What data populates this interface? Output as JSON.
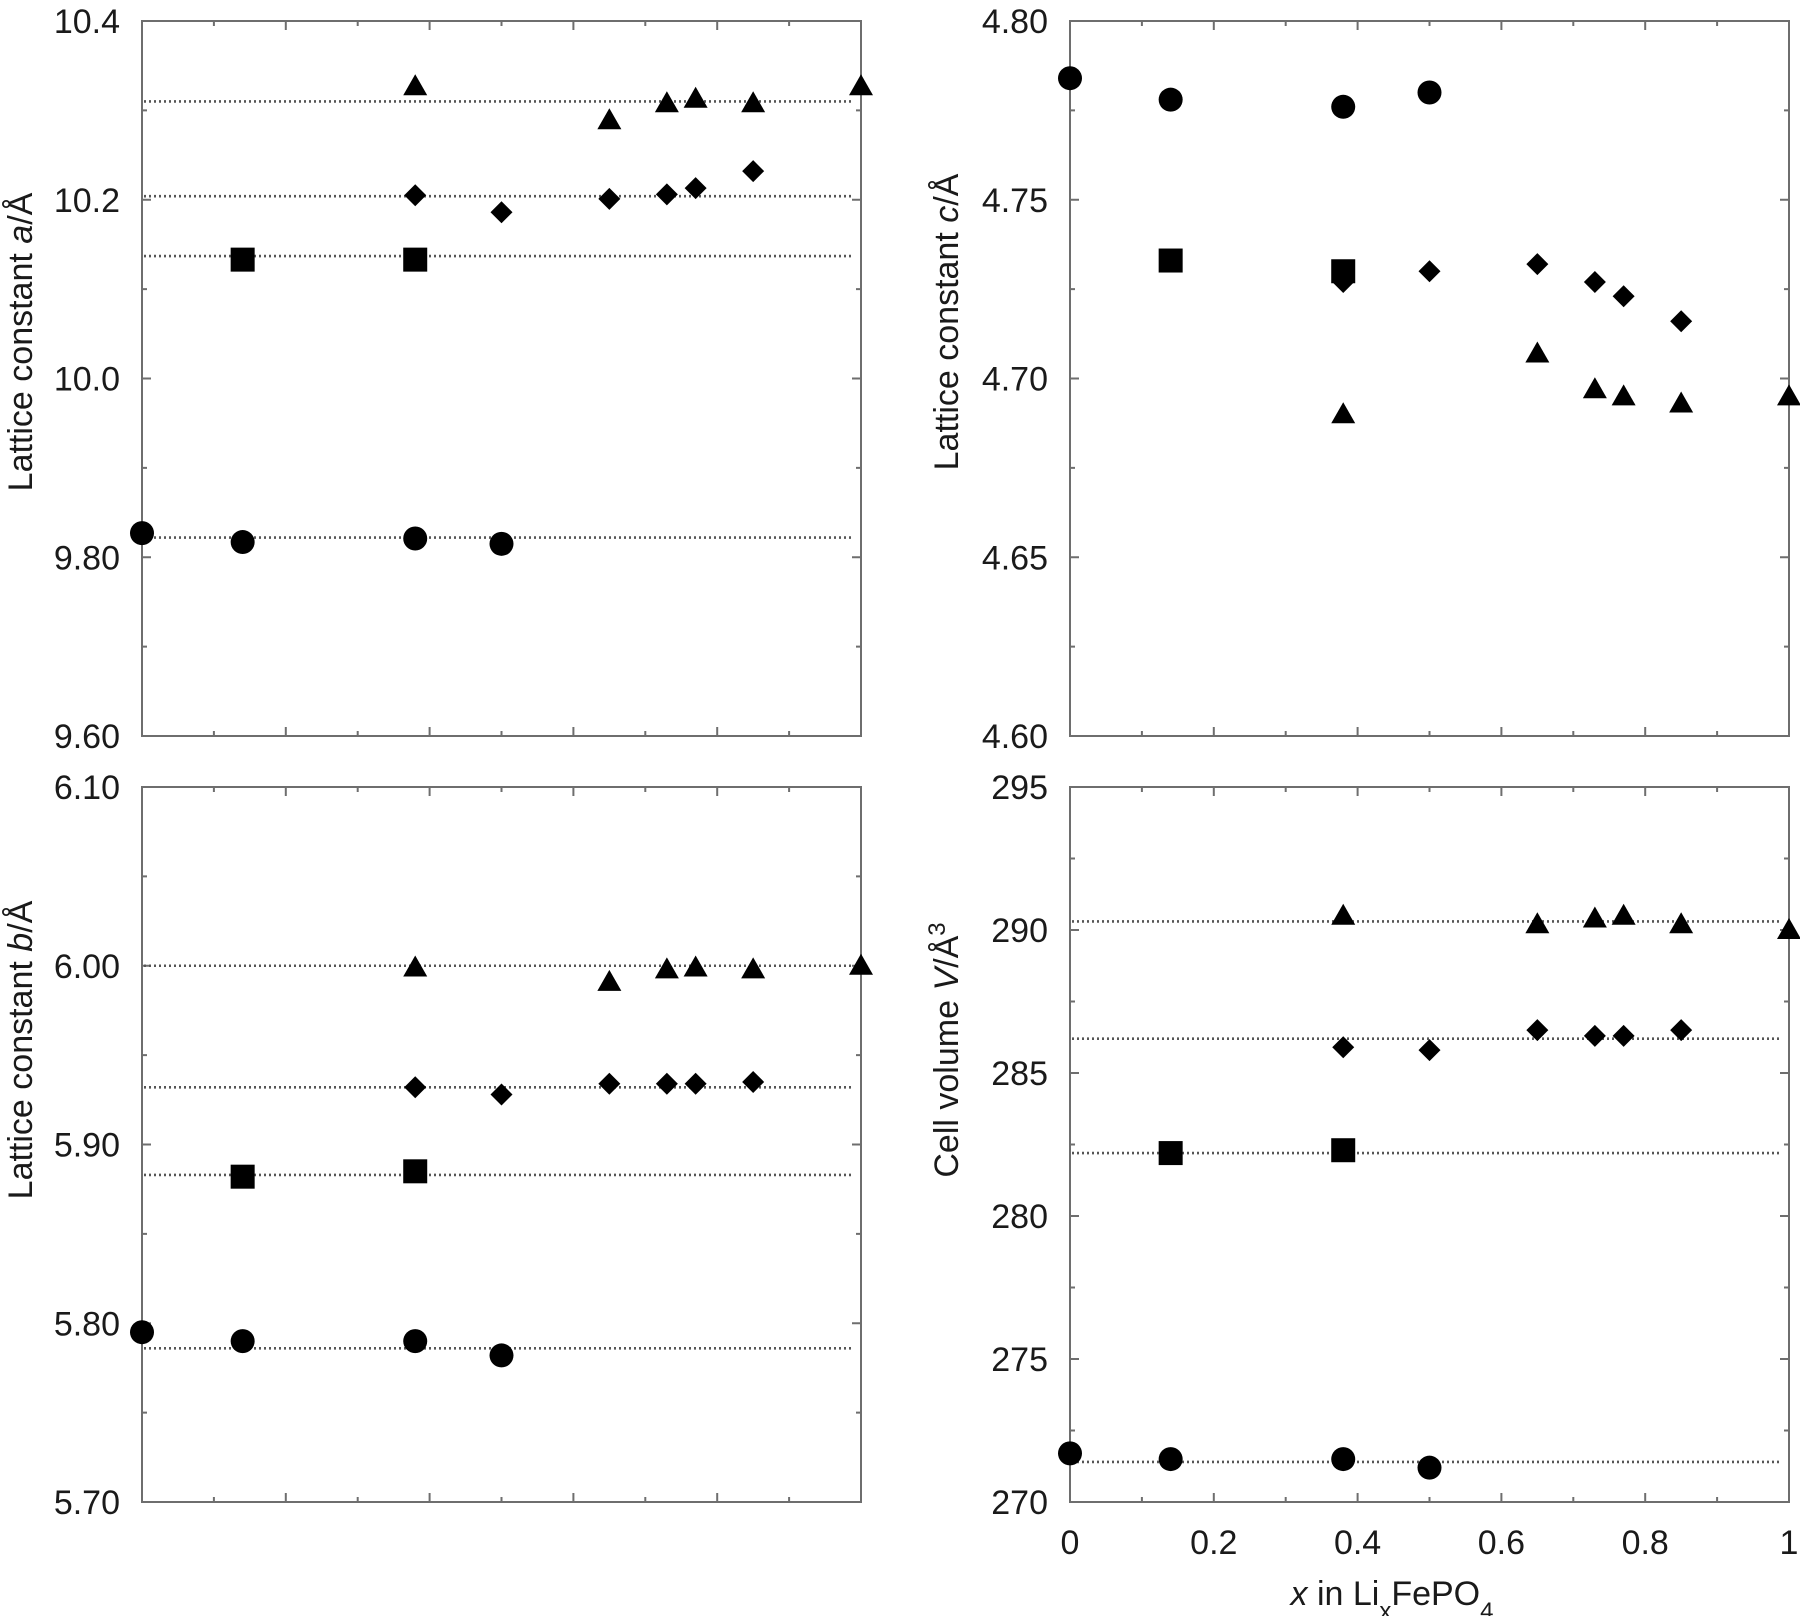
{
  "colors": {
    "marker": "#000000",
    "frame": "#6e6e6e",
    "reference_line": "#555555"
  },
  "chart_data": [
    {
      "type": "scatter",
      "panel": "a",
      "ylabel_pre": "Lattice constant ",
      "ylabel_var": "a",
      "ylabel_unit": "/Å",
      "ylim": [
        9.6,
        10.4
      ],
      "y_ticks": [
        "9.60",
        "9.80",
        "10.0",
        "10.2",
        "10.4"
      ],
      "xlim": [
        0,
        1
      ],
      "reference_lines": [
        10.31,
        10.204,
        10.137,
        9.822
      ],
      "series": [
        {
          "marker": "circle",
          "points": [
            [
              0,
              9.827
            ],
            [
              0.14,
              9.817
            ],
            [
              0.38,
              9.821
            ],
            [
              0.5,
              9.815
            ]
          ]
        },
        {
          "marker": "square",
          "points": [
            [
              0.14,
              10.133
            ],
            [
              0.38,
              10.133
            ]
          ]
        },
        {
          "marker": "diamond",
          "points": [
            [
              0.38,
              10.205
            ],
            [
              0.5,
              10.186
            ],
            [
              0.65,
              10.201
            ],
            [
              0.73,
              10.206
            ],
            [
              0.77,
              10.213
            ],
            [
              0.85,
              10.232
            ]
          ]
        },
        {
          "marker": "triangle",
          "points": [
            [
              0.38,
              10.327
            ],
            [
              0.65,
              10.289
            ],
            [
              0.73,
              10.308
            ],
            [
              0.77,
              10.313
            ],
            [
              0.85,
              10.308
            ],
            [
              1,
              10.327
            ]
          ]
        }
      ]
    },
    {
      "type": "scatter",
      "panel": "c",
      "ylabel_pre": "Lattice constant ",
      "ylabel_var": "c",
      "ylabel_unit": "/Å",
      "ylim": [
        4.6,
        4.8
      ],
      "y_ticks": [
        "4.60",
        "4.65",
        "4.70",
        "4.75",
        "4.80"
      ],
      "xlim": [
        0,
        1
      ],
      "reference_lines": [],
      "series": [
        {
          "marker": "circle",
          "points": [
            [
              0,
              4.784
            ],
            [
              0.14,
              4.778
            ],
            [
              0.38,
              4.776
            ],
            [
              0.5,
              4.78
            ]
          ]
        },
        {
          "marker": "square",
          "points": [
            [
              0.14,
              4.733
            ],
            [
              0.38,
              4.73
            ]
          ]
        },
        {
          "marker": "diamond",
          "points": [
            [
              0.38,
              4.727
            ],
            [
              0.5,
              4.73
            ],
            [
              0.65,
              4.732
            ],
            [
              0.73,
              4.727
            ],
            [
              0.77,
              4.723
            ],
            [
              0.85,
              4.716
            ]
          ]
        },
        {
          "marker": "triangle",
          "points": [
            [
              0.38,
              4.69
            ],
            [
              0.65,
              4.707
            ],
            [
              0.73,
              4.697
            ],
            [
              0.77,
              4.695
            ],
            [
              0.85,
              4.693
            ],
            [
              1,
              4.695
            ]
          ]
        }
      ]
    },
    {
      "type": "scatter",
      "panel": "b",
      "ylabel_pre": "Lattice constant ",
      "ylabel_var": "b",
      "ylabel_unit": "/Å",
      "ylim": [
        5.7,
        6.1
      ],
      "y_ticks": [
        "5.70",
        "5.80",
        "5.90",
        "6.00",
        "6.10"
      ],
      "xlim": [
        0,
        1
      ],
      "reference_lines": [
        6.0,
        5.932,
        5.883,
        5.786
      ],
      "series": [
        {
          "marker": "circle",
          "points": [
            [
              0,
              5.795
            ],
            [
              0.14,
              5.79
            ],
            [
              0.38,
              5.79
            ],
            [
              0.5,
              5.782
            ]
          ]
        },
        {
          "marker": "square",
          "points": [
            [
              0.14,
              5.882
            ],
            [
              0.38,
              5.885
            ]
          ]
        },
        {
          "marker": "diamond",
          "points": [
            [
              0.38,
              5.932
            ],
            [
              0.5,
              5.928
            ],
            [
              0.65,
              5.934
            ],
            [
              0.73,
              5.934
            ],
            [
              0.77,
              5.934
            ],
            [
              0.85,
              5.935
            ]
          ]
        },
        {
          "marker": "triangle",
          "points": [
            [
              0.38,
              5.999
            ],
            [
              0.65,
              5.991
            ],
            [
              0.73,
              5.998
            ],
            [
              0.77,
              5.999
            ],
            [
              0.85,
              5.998
            ],
            [
              1,
              6.0
            ]
          ]
        }
      ]
    },
    {
      "type": "scatter",
      "panel": "V",
      "ylabel_pre": "Cell volume ",
      "ylabel_var": "V",
      "ylabel_unit": "/Å",
      "ylabel_sup": "3",
      "ylim": [
        270,
        295
      ],
      "y_ticks": [
        "270",
        "275",
        "280",
        "285",
        "290",
        "295"
      ],
      "xlim": [
        0,
        1
      ],
      "x_ticks": [
        "0",
        "0.2",
        "0.4",
        "0.6",
        "0.8",
        "1"
      ],
      "xlabel_var": "x",
      "xlabel_pre": " in Li",
      "xlabel_sub1": "x",
      "xlabel_mid": "FePO",
      "xlabel_sub2": "4",
      "reference_lines": [
        290.3,
        286.2,
        282.2,
        271.4
      ],
      "series": [
        {
          "marker": "circle",
          "points": [
            [
              0,
              271.7
            ],
            [
              0.14,
              271.5
            ],
            [
              0.38,
              271.5
            ],
            [
              0.5,
              271.2
            ]
          ]
        },
        {
          "marker": "square",
          "points": [
            [
              0.14,
              282.2
            ],
            [
              0.38,
              282.3
            ]
          ]
        },
        {
          "marker": "diamond",
          "points": [
            [
              0.38,
              285.9
            ],
            [
              0.5,
              285.8
            ],
            [
              0.65,
              286.5
            ],
            [
              0.73,
              286.3
            ],
            [
              0.77,
              286.3
            ],
            [
              0.85,
              286.5
            ]
          ]
        },
        {
          "marker": "triangle",
          "points": [
            [
              0.38,
              290.5
            ],
            [
              0.65,
              290.2
            ],
            [
              0.73,
              290.4
            ],
            [
              0.77,
              290.5
            ],
            [
              0.85,
              290.2
            ],
            [
              1,
              290.0
            ]
          ]
        }
      ]
    }
  ]
}
